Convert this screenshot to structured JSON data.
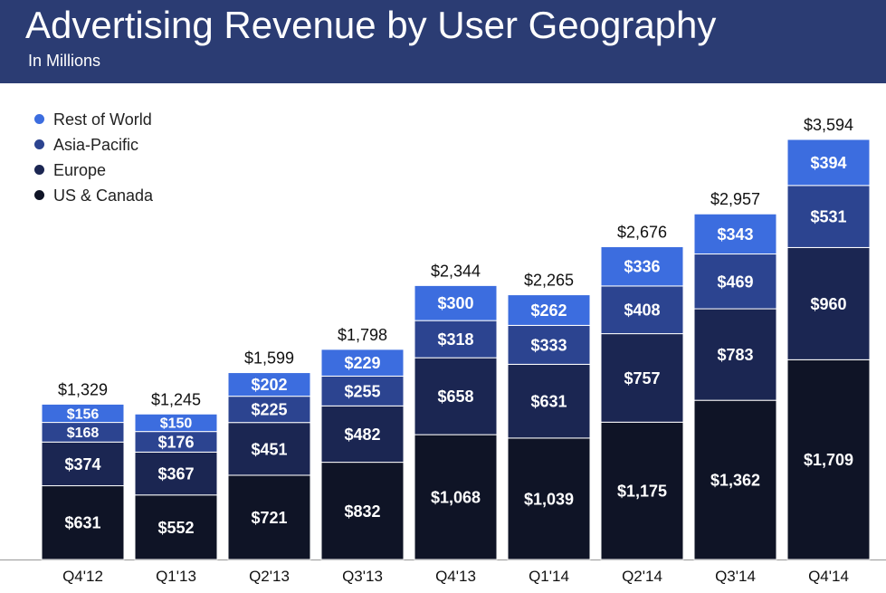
{
  "header": {
    "title": "Advertising Revenue by User Geography",
    "subtitle": "In Millions",
    "background_color": "#2b3c73"
  },
  "legend": [
    {
      "name": "Rest of World",
      "color": "#3c6ddf"
    },
    {
      "name": "Asia-Pacific",
      "color": "#2c4490"
    },
    {
      "name": "Europe",
      "color": "#1b2652"
    },
    {
      "name": "US & Canada",
      "color": "#0f1426"
    }
  ],
  "chart_data": {
    "type": "bar",
    "stacked": true,
    "title": "Advertising Revenue by User Geography",
    "subtitle": "In Millions",
    "categories": [
      "Q4'12",
      "Q1'13",
      "Q2'13",
      "Q3'13",
      "Q4'13",
      "Q1'14",
      "Q2'14",
      "Q3'14",
      "Q4'14"
    ],
    "series": [
      {
        "name": "US & Canada",
        "color": "#0f1426",
        "values": [
          631,
          552,
          721,
          832,
          1068,
          1039,
          1175,
          1362,
          1709
        ]
      },
      {
        "name": "Europe",
        "color": "#1b2652",
        "values": [
          374,
          367,
          451,
          482,
          658,
          631,
          757,
          783,
          960
        ]
      },
      {
        "name": "Asia-Pacific",
        "color": "#2c4490",
        "values": [
          168,
          176,
          225,
          255,
          318,
          333,
          408,
          469,
          531
        ]
      },
      {
        "name": "Rest of World",
        "color": "#3c6ddf",
        "values": [
          156,
          150,
          202,
          229,
          300,
          262,
          336,
          343,
          394
        ]
      }
    ],
    "value_labels": [
      [
        "$631",
        "$552",
        "$721",
        "$832",
        "$1,068",
        "$1,039",
        "$1,175",
        "$1,362",
        "$1,709"
      ],
      [
        "$374",
        "$367",
        "$451",
        "$482",
        "$658",
        "$631",
        "$757",
        "$783",
        "$960"
      ],
      [
        "$168",
        "$176",
        "$225",
        "$255",
        "$318",
        "$333",
        "$408",
        "$469",
        "$531"
      ],
      [
        "$156",
        "$150",
        "$202",
        "$229",
        "$300",
        "$262",
        "$336",
        "$343",
        "$394"
      ]
    ],
    "totals": [
      1329,
      1245,
      1599,
      1798,
      2344,
      2265,
      2676,
      2957,
      3594
    ],
    "total_labels": [
      "$1,329",
      "$1,245",
      "$1,599",
      "$1,798",
      "$2,344",
      "$2,265",
      "$2,676",
      "$2,957",
      "$3,594"
    ],
    "ylim": [
      0,
      3594
    ],
    "xlabel": "",
    "ylabel": "",
    "grid": false,
    "legend_position": "top-left"
  }
}
